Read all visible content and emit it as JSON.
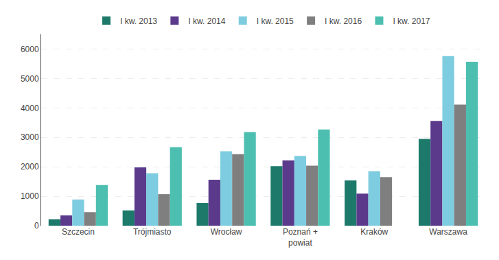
{
  "chart_data": {
    "type": "bar",
    "categories": [
      "Szczecin",
      "Trójmiasto",
      "Wrocław",
      "Poznań +\npowiat",
      "Kraków",
      "Warszawa"
    ],
    "series": [
      {
        "name": "I kw. 2013",
        "color": "#1d7a6b",
        "values": [
          220,
          520,
          770,
          2020,
          1540,
          2950
        ]
      },
      {
        "name": "I kw. 2014",
        "color": "#5b3a8c",
        "values": [
          350,
          1980,
          1560,
          2220,
          1090,
          3560
        ]
      },
      {
        "name": "I kw. 2015",
        "color": "#7ecce0",
        "values": [
          890,
          1780,
          2530,
          2370,
          1850,
          5760
        ]
      },
      {
        "name": "I kw. 2016",
        "color": "#7f7f7f",
        "values": [
          460,
          1070,
          2430,
          2040,
          1650,
          4110
        ]
      },
      {
        "name": "I kw. 2017",
        "color": "#4dbfb0",
        "values": [
          1380,
          2670,
          3180,
          3270,
          0,
          5570
        ]
      }
    ],
    "ylim": [
      0,
      6500
    ],
    "yticks": [
      0,
      1000,
      2000,
      3000,
      4000,
      5000,
      6000
    ],
    "grid": true,
    "legend": "top"
  }
}
